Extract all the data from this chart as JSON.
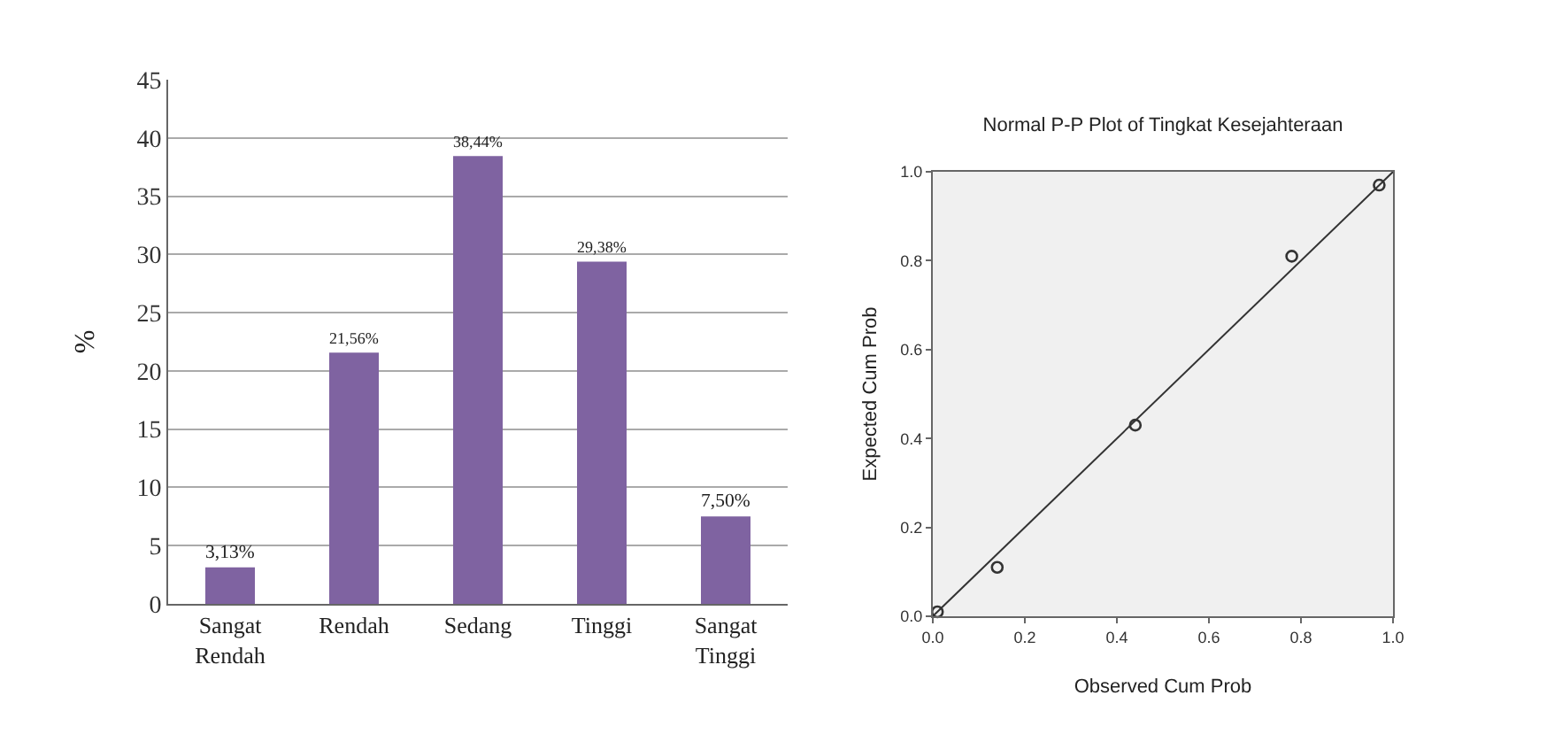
{
  "chart_data": [
    {
      "type": "bar",
      "ylabel": "%",
      "categories": [
        "Sangat Rendah",
        "Rendah",
        "Sedang",
        "Tinggi",
        "Sangat Tinggi"
      ],
      "series": [
        {
          "color": "#7f63a1",
          "values": [
            3.13,
            21.56,
            38.44,
            29.38,
            7.5
          ],
          "value_labels": [
            "3,13%",
            "21,56%",
            "38,44%",
            "29,38%",
            "7,50%"
          ]
        }
      ],
      "ylim": [
        0,
        45
      ],
      "yticks": [
        0,
        5,
        10,
        15,
        20,
        25,
        30,
        35,
        40,
        45
      ],
      "grid": "y"
    },
    {
      "type": "scatter",
      "title": "Normal P-P Plot of Tingkat Kesejahteraan",
      "xlabel": "Observed Cum Prob",
      "ylabel": "Expected Cum Prob",
      "series": [
        {
          "color": "#333333",
          "marker": "circle",
          "x": [
            0.01,
            0.14,
            0.44,
            0.78,
            0.97
          ],
          "values": [
            0.01,
            0.11,
            0.43,
            0.81,
            0.97
          ]
        },
        {
          "type": "line",
          "color": "#333333",
          "x": [
            0,
            1
          ],
          "values": [
            0,
            1
          ]
        }
      ],
      "xlim": [
        0,
        1
      ],
      "ylim": [
        0,
        1
      ],
      "xticks": [
        {
          "value": 0,
          "label": "0.0"
        },
        {
          "value": 0.2,
          "label": "0.2"
        },
        {
          "value": 0.4,
          "label": "0.4"
        },
        {
          "value": 0.6,
          "label": "0.6"
        },
        {
          "value": 0.8,
          "label": "0.8"
        },
        {
          "value": 1,
          "label": "1.0"
        }
      ],
      "yticks": [
        {
          "value": 0,
          "label": "0.0"
        },
        {
          "value": 0.2,
          "label": "0.2"
        },
        {
          "value": 0.4,
          "label": "0.4"
        },
        {
          "value": 0.6,
          "label": "0.6"
        },
        {
          "value": 0.8,
          "label": "0.8"
        },
        {
          "value": 1,
          "label": "1.0"
        }
      ],
      "grid": false
    }
  ]
}
